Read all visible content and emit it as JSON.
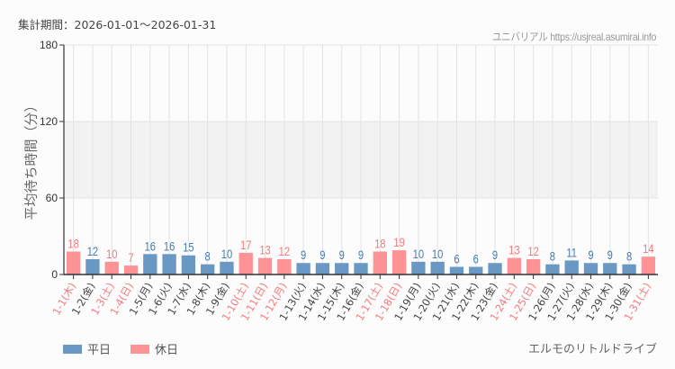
{
  "header": {
    "period": "集計期間：2026-01-01～2026-01-31",
    "credit": "ユニバリアル  https://usjreal.asumirai.info"
  },
  "footer": {
    "attraction": "エルモのリトルドライブ"
  },
  "colors": {
    "weekday": "#6a98c4",
    "holiday": "#fe9294",
    "weekday_label": "#4a7bb0",
    "holiday_label": "#f57a7e",
    "band": "#f2f2f2"
  },
  "chart_data": {
    "type": "bar",
    "title": "",
    "xlabel": "",
    "ylabel": "平均待ち時間（分）",
    "ylim": [
      0,
      180
    ],
    "yticks": [
      0,
      60,
      120,
      180
    ],
    "shaded_band": [
      60,
      120
    ],
    "grid": true,
    "legend_position": "bottom-left",
    "legend": [
      {
        "name": "平日",
        "color": "#6a98c4"
      },
      {
        "name": "休日",
        "color": "#fe9294"
      }
    ],
    "categories": [
      "1-1(木)",
      "1-2(金)",
      "1-3(土)",
      "1-4(日)",
      "1-5(月)",
      "1-6(火)",
      "1-7(水)",
      "1-8(木)",
      "1-9(金)",
      "1-10(土)",
      "1-11(日)",
      "1-12(月)",
      "1-13(火)",
      "1-14(水)",
      "1-15(木)",
      "1-16(金)",
      "1-17(土)",
      "1-18(日)",
      "1-19(月)",
      "1-20(火)",
      "1-21(水)",
      "1-22(木)",
      "1-23(金)",
      "1-24(土)",
      "1-25(日)",
      "1-26(月)",
      "1-27(火)",
      "1-28(水)",
      "1-29(木)",
      "1-30(金)",
      "1-31(土)"
    ],
    "values": [
      18,
      12,
      10,
      7,
      16,
      16,
      15,
      8,
      10,
      17,
      13,
      12,
      9,
      9,
      9,
      9,
      18,
      19,
      10,
      10,
      6,
      6,
      9,
      13,
      12,
      8,
      11,
      9,
      9,
      8,
      14
    ],
    "day_type": [
      "休日",
      "平日",
      "休日",
      "休日",
      "平日",
      "平日",
      "平日",
      "平日",
      "平日",
      "休日",
      "休日",
      "休日",
      "平日",
      "平日",
      "平日",
      "平日",
      "休日",
      "休日",
      "平日",
      "平日",
      "平日",
      "平日",
      "平日",
      "休日",
      "休日",
      "平日",
      "平日",
      "平日",
      "平日",
      "平日",
      "休日"
    ]
  }
}
